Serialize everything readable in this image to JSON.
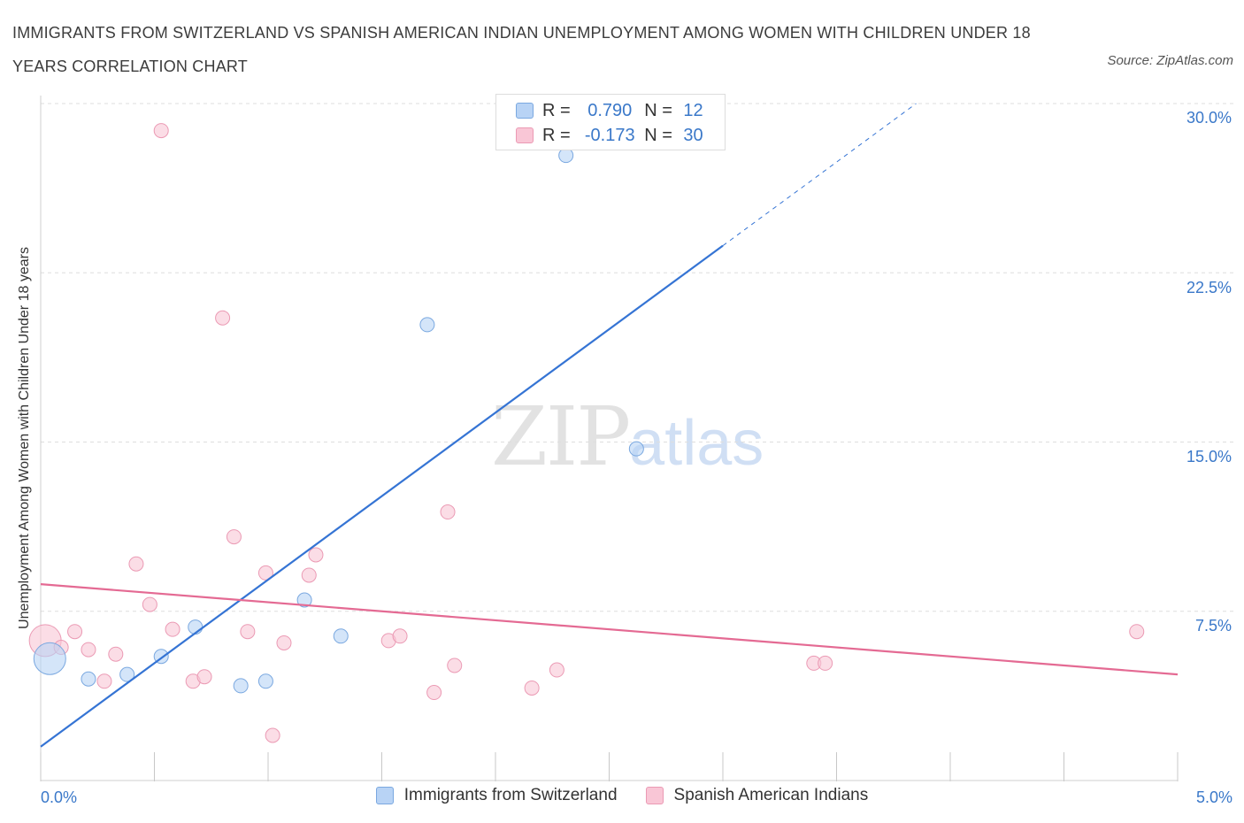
{
  "title": "IMMIGRANTS FROM SWITZERLAND VS SPANISH AMERICAN INDIAN UNEMPLOYMENT AMONG WOMEN WITH CHILDREN UNDER 18 YEARS CORRELATION CHART",
  "source": "Source: ZipAtlas.com",
  "watermark": {
    "main": "ZIP",
    "accent": "atlas"
  },
  "legend": {
    "r_label": "R =",
    "n_label": "N =",
    "series": [
      {
        "name": "Immigrants from Switzerland",
        "r": "0.790",
        "n": "12"
      },
      {
        "name": "Spanish American Indians",
        "r": "-0.173",
        "n": "30"
      }
    ]
  },
  "colors": {
    "swiss_fill": "#b8d3f5",
    "swiss_stroke": "#7aa8e0",
    "swiss_line": "#3574d4",
    "sai_fill": "#f9c6d6",
    "sai_stroke": "#eb9ab4",
    "sai_line": "#e46a93",
    "tick_label": "#3a78c9"
  },
  "chart_data": {
    "type": "scatter",
    "title": "IMMIGRANTS FROM SWITZERLAND VS SPANISH AMERICAN INDIAN UNEMPLOYMENT AMONG WOMEN WITH CHILDREN UNDER 18 YEARS CORRELATION CHART",
    "xlabel": "",
    "ylabel": "Unemployment Among Women with Children Under 18 years",
    "xlim": [
      0,
      5.0
    ],
    "ylim": [
      0,
      30.0
    ],
    "x_ticks": [
      "0.0%",
      "5.0%"
    ],
    "y_ticks": [
      {
        "value": 7.5,
        "label": "7.5%"
      },
      {
        "value": 15.0,
        "label": "15.0%"
      },
      {
        "value": 22.5,
        "label": "22.5%"
      },
      {
        "value": 30.0,
        "label": "30.0%"
      }
    ],
    "grid": true,
    "legend_position": "top-center",
    "series": [
      {
        "name": "Immigrants from Switzerland",
        "r": 0.79,
        "n": 12,
        "points": [
          {
            "x": 0.04,
            "y": 5.4,
            "size": "large"
          },
          {
            "x": 0.21,
            "y": 4.5
          },
          {
            "x": 0.38,
            "y": 4.7
          },
          {
            "x": 0.53,
            "y": 5.5
          },
          {
            "x": 0.68,
            "y": 6.8
          },
          {
            "x": 0.88,
            "y": 4.2
          },
          {
            "x": 0.99,
            "y": 4.4
          },
          {
            "x": 1.16,
            "y": 8.0
          },
          {
            "x": 1.32,
            "y": 6.4
          },
          {
            "x": 1.7,
            "y": 20.2
          },
          {
            "x": 2.31,
            "y": 27.7
          },
          {
            "x": 2.62,
            "y": 14.7
          }
        ],
        "trend": {
          "x0": 0.0,
          "y0": 1.5,
          "x1": 3.0,
          "y1": 23.7,
          "dashed_to_x": 3.85,
          "dashed_to_y": 30.0
        }
      },
      {
        "name": "Spanish American Indians",
        "r": -0.173,
        "n": 30,
        "points": [
          {
            "x": 0.02,
            "y": 6.2,
            "size": "large"
          },
          {
            "x": 0.09,
            "y": 5.9
          },
          {
            "x": 0.15,
            "y": 6.6
          },
          {
            "x": 0.21,
            "y": 5.8
          },
          {
            "x": 0.28,
            "y": 4.4
          },
          {
            "x": 0.33,
            "y": 5.6
          },
          {
            "x": 0.42,
            "y": 9.6
          },
          {
            "x": 0.48,
            "y": 7.8
          },
          {
            "x": 0.53,
            "y": 28.8
          },
          {
            "x": 0.58,
            "y": 6.7
          },
          {
            "x": 0.67,
            "y": 4.4
          },
          {
            "x": 0.72,
            "y": 4.6
          },
          {
            "x": 0.8,
            "y": 20.5
          },
          {
            "x": 0.85,
            "y": 10.8
          },
          {
            "x": 0.91,
            "y": 6.6
          },
          {
            "x": 0.99,
            "y": 9.2
          },
          {
            "x": 1.02,
            "y": 2.0
          },
          {
            "x": 1.07,
            "y": 6.1
          },
          {
            "x": 1.18,
            "y": 9.1
          },
          {
            "x": 1.21,
            "y": 10.0
          },
          {
            "x": 1.53,
            "y": 6.2
          },
          {
            "x": 1.58,
            "y": 6.4
          },
          {
            "x": 1.73,
            "y": 3.9
          },
          {
            "x": 1.79,
            "y": 11.9
          },
          {
            "x": 1.82,
            "y": 5.1
          },
          {
            "x": 2.16,
            "y": 4.1
          },
          {
            "x": 2.27,
            "y": 4.9
          },
          {
            "x": 3.4,
            "y": 5.2
          },
          {
            "x": 3.45,
            "y": 5.2
          },
          {
            "x": 4.82,
            "y": 6.6
          }
        ],
        "trend": {
          "x0": 0.0,
          "y0": 8.7,
          "x1": 5.0,
          "y1": 4.7
        }
      }
    ]
  }
}
